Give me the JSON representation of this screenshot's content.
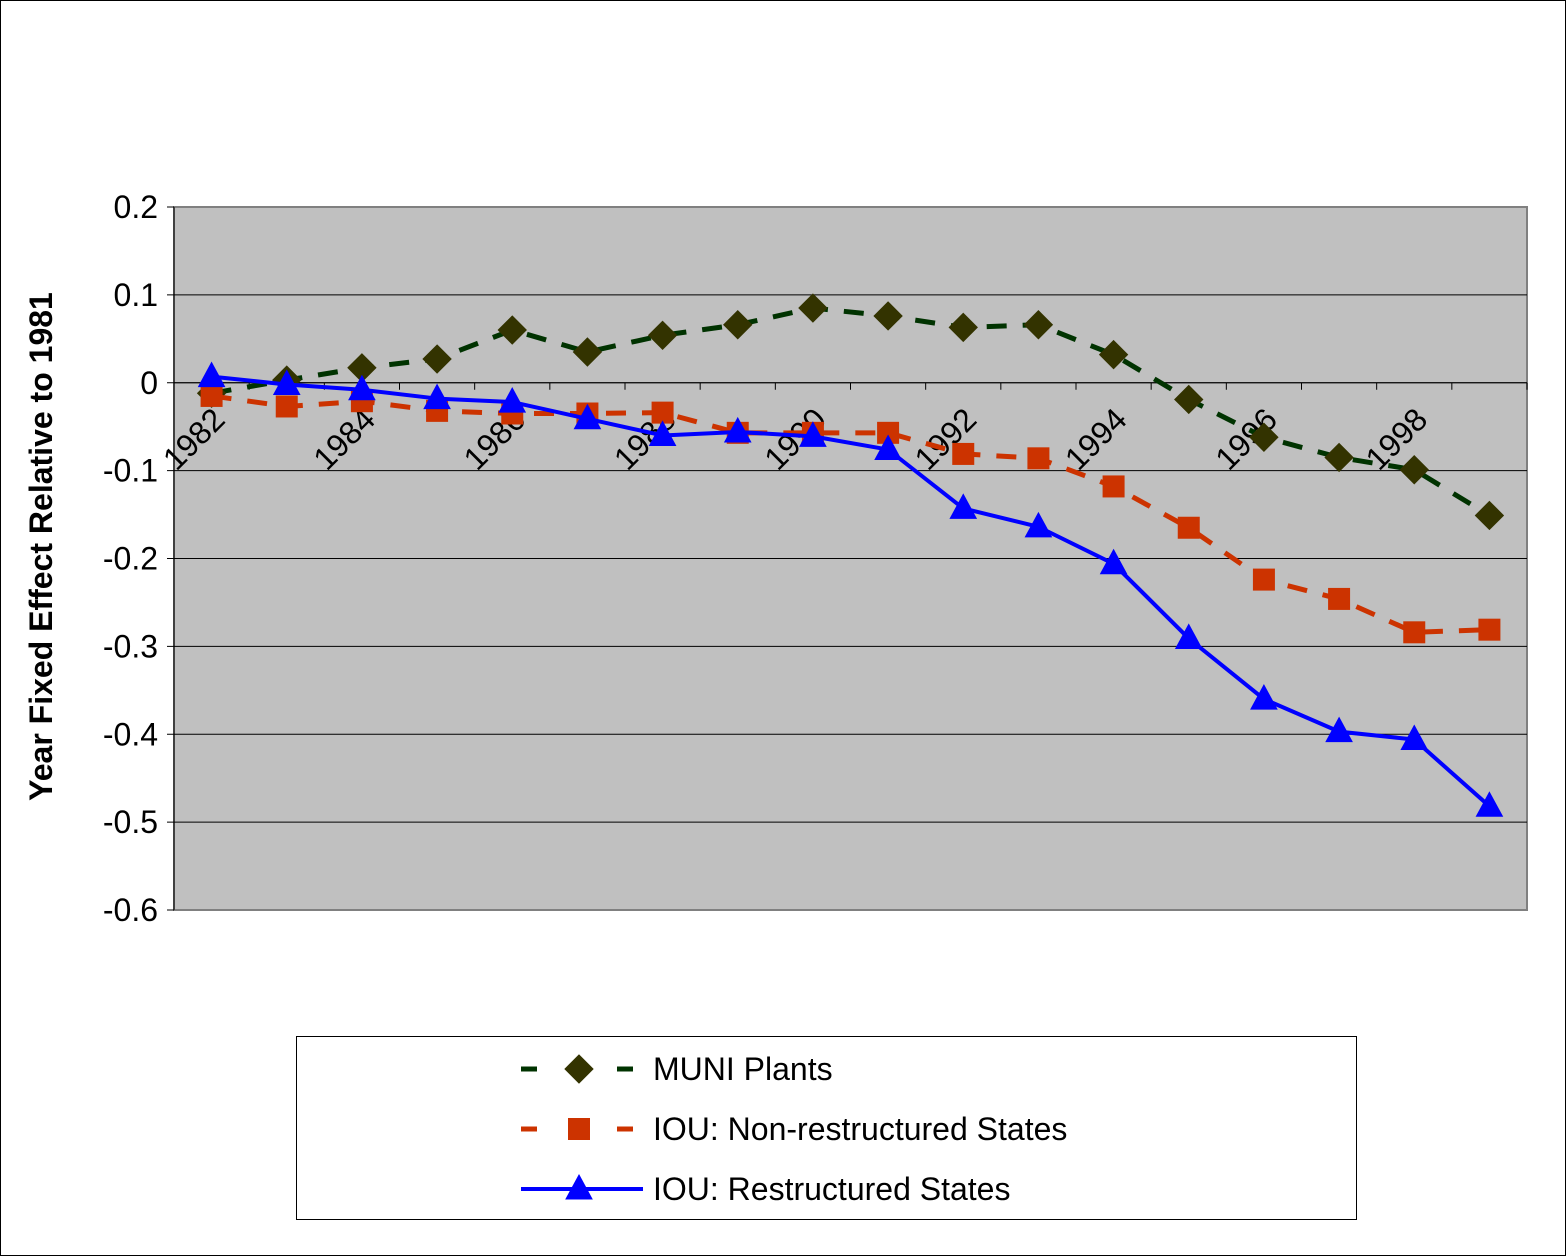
{
  "chart_data": {
    "type": "line",
    "title": "",
    "xlabel": "",
    "ylabel": "Year Fixed Effect Relative to 1981",
    "ylim": [
      -0.6,
      0.2
    ],
    "yticks": [
      0.2,
      0.1,
      0,
      -0.1,
      -0.2,
      -0.3,
      -0.4,
      -0.5,
      -0.6
    ],
    "ytick_labels": [
      "0.2",
      "0.1",
      "0",
      "-0.1",
      "-0.2",
      "-0.3",
      "-0.4",
      "-0.5",
      "-0.6"
    ],
    "x": [
      1982,
      1983,
      1984,
      1985,
      1986,
      1987,
      1988,
      1989,
      1990,
      1991,
      1992,
      1993,
      1994,
      1995,
      1996,
      1997,
      1998,
      1999
    ],
    "xtick_labels": [
      "1982",
      "1984",
      "1986",
      "1988",
      "1990",
      "1992",
      "1994",
      "1996",
      "1998"
    ],
    "xtick_years": [
      1982,
      1984,
      1986,
      1988,
      1990,
      1992,
      1994,
      1996,
      1998
    ],
    "grid": true,
    "plot_background": "#c0c0c0",
    "legend_position": "bottom",
    "series": [
      {
        "name": "MUNI Plants",
        "color": "#003300",
        "marker_color": "#333300",
        "marker": "diamond",
        "line_style": "dashed",
        "values": [
          -0.012,
          0.003,
          0.017,
          0.027,
          0.06,
          0.035,
          0.054,
          0.066,
          0.085,
          0.076,
          0.063,
          0.066,
          0.032,
          -0.019,
          -0.062,
          -0.085,
          -0.099,
          -0.151
        ]
      },
      {
        "name": "IOU:  Non-restructured States",
        "color": "#cc3300",
        "marker_color": "#cc3300",
        "marker": "square",
        "line_style": "dashed",
        "values": [
          -0.015,
          -0.027,
          -0.021,
          -0.032,
          -0.035,
          -0.035,
          -0.034,
          -0.057,
          -0.057,
          -0.057,
          -0.081,
          -0.086,
          -0.118,
          -0.165,
          -0.224,
          -0.246,
          -0.284,
          -0.281
        ]
      },
      {
        "name": "IOU:  Restructured States",
        "color": "#0000ff",
        "marker_color": "#0000ff",
        "marker": "triangle",
        "line_style": "solid",
        "values": [
          0.007,
          -0.002,
          -0.008,
          -0.018,
          -0.022,
          -0.041,
          -0.06,
          -0.056,
          -0.061,
          -0.076,
          -0.143,
          -0.164,
          -0.206,
          -0.291,
          -0.36,
          -0.397,
          -0.406,
          -0.482
        ]
      }
    ]
  }
}
